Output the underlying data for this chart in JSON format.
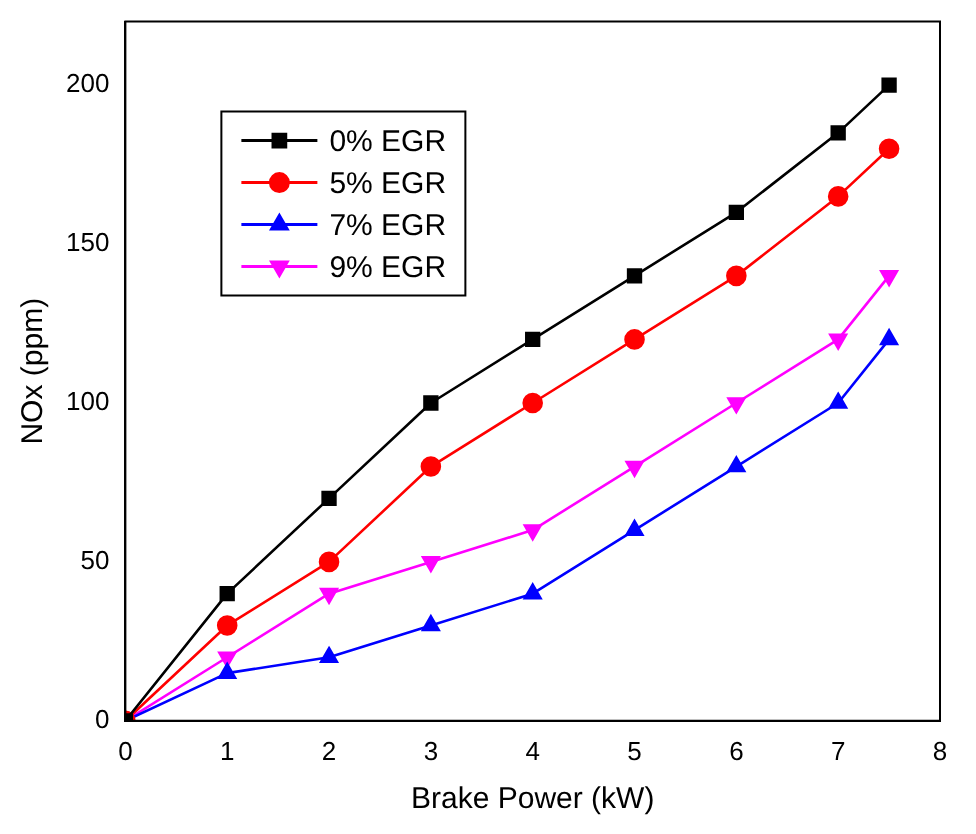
{
  "chart_data": {
    "type": "line",
    "xlabel": "Brake Power (kW)",
    "ylabel": "NOx (ppm)",
    "x": [
      0,
      1,
      2,
      3,
      4,
      5,
      6,
      7,
      7.5
    ],
    "series": [
      {
        "name": "0% EGR",
        "color": "#000000",
        "marker": "square",
        "values": [
          0,
          40,
          70,
          100,
          120,
          140,
          160,
          185,
          200
        ]
      },
      {
        "name": "5% EGR",
        "color": "#ff0000",
        "marker": "circle",
        "values": [
          0,
          30,
          50,
          80,
          100,
          120,
          140,
          165,
          180
        ]
      },
      {
        "name": "7% EGR",
        "color": "#0000ff",
        "marker": "triangle",
        "values": [
          0,
          15,
          20,
          30,
          40,
          60,
          80,
          100,
          120
        ]
      },
      {
        "name": "9% EGR",
        "color": "#ff00ff",
        "marker": "triangle-down",
        "values": [
          0,
          20,
          40,
          50,
          60,
          80,
          100,
          120,
          140
        ]
      }
    ],
    "xlim": [
      0,
      8
    ],
    "xticks": [
      0,
      1,
      2,
      3,
      4,
      5,
      6,
      7,
      8
    ],
    "ylim": [
      0,
      220
    ],
    "yticks": [
      0,
      50,
      100,
      150,
      200
    ],
    "grid": false,
    "legend": "top left"
  }
}
